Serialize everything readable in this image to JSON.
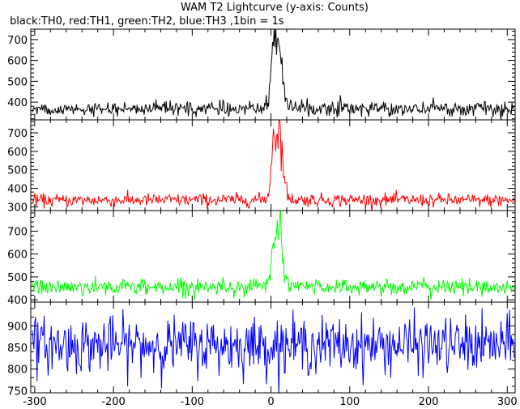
{
  "chart_data": {
    "type": "line",
    "title": "WAM T2 Lightcurve (y-axis: Counts)",
    "subtitle": "black:TH0, red:TH1, green:TH2, blue:TH3 ,1bin = 1s",
    "xlim": [
      -305,
      310
    ],
    "xticks": [
      -300,
      -200,
      -100,
      0,
      100,
      200,
      300
    ],
    "grid": false,
    "panels": [
      {
        "name": "TH0",
        "color": "#000000",
        "ylim": [
          315,
          750
        ],
        "yticks": [
          400,
          500,
          600,
          700
        ],
        "baseline": 368,
        "noise": 16,
        "points": [
          [
            -305,
            368
          ],
          [
            -10,
            370
          ],
          [
            -3,
            390
          ],
          [
            0,
            560
          ],
          [
            2,
            700
          ],
          [
            3,
            745
          ],
          [
            6,
            690
          ],
          [
            8,
            660
          ],
          [
            10,
            680
          ],
          [
            13,
            620
          ],
          [
            15,
            520
          ],
          [
            18,
            420
          ],
          [
            22,
            380
          ],
          [
            30,
            370
          ],
          [
            310,
            368
          ]
        ]
      },
      {
        "name": "TH1",
        "color": "#ff0000",
        "ylim": [
          280,
          770
        ],
        "yticks": [
          300,
          400,
          500,
          600,
          700
        ],
        "baseline": 335,
        "noise": 17,
        "points": [
          [
            -305,
            335
          ],
          [
            -10,
            338
          ],
          [
            -3,
            360
          ],
          [
            0,
            520
          ],
          [
            3,
            700
          ],
          [
            5,
            740
          ],
          [
            8,
            640
          ],
          [
            10,
            750
          ],
          [
            12,
            700
          ],
          [
            15,
            560
          ],
          [
            18,
            420
          ],
          [
            22,
            350
          ],
          [
            30,
            338
          ],
          [
            310,
            335
          ]
        ]
      },
      {
        "name": "TH2",
        "color": "#00ff00",
        "ylim": [
          390,
          790
        ],
        "yticks": [
          400,
          500,
          600,
          700
        ],
        "baseline": 455,
        "noise": 17,
        "points": [
          [
            -305,
            455
          ],
          [
            -10,
            458
          ],
          [
            -3,
            480
          ],
          [
            0,
            540
          ],
          [
            3,
            600
          ],
          [
            6,
            620
          ],
          [
            8,
            760
          ],
          [
            10,
            700
          ],
          [
            12,
            780
          ],
          [
            14,
            620
          ],
          [
            17,
            520
          ],
          [
            22,
            470
          ],
          [
            30,
            458
          ],
          [
            310,
            455
          ]
        ]
      },
      {
        "name": "TH3",
        "color": "#0000ff",
        "ylim": [
          745,
          955
        ],
        "yticks": [
          750,
          800,
          850,
          900
        ],
        "baseline": 855,
        "noise": 32,
        "points": [
          [
            -305,
            855
          ],
          [
            310,
            855
          ]
        ]
      }
    ]
  }
}
